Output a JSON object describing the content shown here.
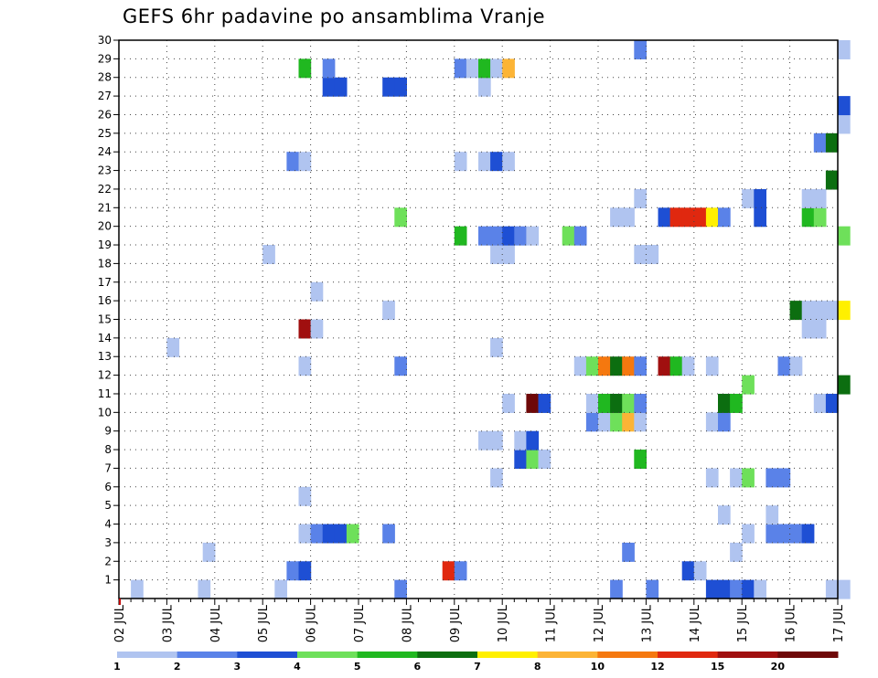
{
  "chart_data": {
    "type": "heatmap",
    "title": "GEFS 6hr padavine po ansamblima Vranje",
    "xlabel": "",
    "ylabel": "",
    "x_tick_labels": [
      "02 JUL",
      "03 JUL",
      "04 JUL",
      "05 JUL",
      "06 JUL",
      "07 JUL",
      "08 JUL",
      "09 JUL",
      "10 JUL",
      "11 JUL",
      "12 JUL",
      "13 JUL",
      "14 JUL",
      "15 JUL",
      "16 JUL",
      "17 JUL"
    ],
    "y_tick_labels": [
      "1",
      "2",
      "3",
      "4",
      "5",
      "6",
      "7",
      "8",
      "9",
      "10",
      "11",
      "12",
      "13",
      "14",
      "15",
      "16",
      "17",
      "18",
      "19",
      "20",
      "21",
      "22",
      "23",
      "24",
      "25",
      "26",
      "27",
      "28",
      "29",
      "30"
    ],
    "xlim_days": [
      0,
      15
    ],
    "ylim_members": [
      0,
      30
    ],
    "grid": true,
    "legend": {
      "position": "bottom",
      "labels": [
        "1",
        "2",
        "3",
        "4",
        "5",
        "6",
        "7",
        "8",
        "10",
        "12",
        "15",
        "20"
      ],
      "colors": [
        "#b0c4f0",
        "#5a82e8",
        "#1e4fd4",
        "#6ee05a",
        "#20b820",
        "#0c6e10",
        "#fff000",
        "#fcb436",
        "#f5780f",
        "#e0280f",
        "#a00f0f",
        "#6e0808"
      ]
    },
    "cells": [
      [
        0.25,
        0,
        0
      ],
      [
        1.65,
        0,
        0
      ],
      [
        3.25,
        0,
        0
      ],
      [
        5.75,
        0,
        1
      ],
      [
        10.25,
        0,
        1
      ],
      [
        11.0,
        0,
        1
      ],
      [
        12.25,
        0,
        2
      ],
      [
        12.5,
        0,
        2
      ],
      [
        12.75,
        0,
        1
      ],
      [
        13.0,
        0,
        2
      ],
      [
        13.25,
        0,
        0
      ],
      [
        14.75,
        0,
        0
      ],
      [
        15.0,
        0,
        0
      ],
      [
        3.5,
        1,
        1
      ],
      [
        3.75,
        1,
        2
      ],
      [
        6.75,
        1,
        9
      ],
      [
        7.0,
        1,
        1
      ],
      [
        11.75,
        1,
        2
      ],
      [
        12.0,
        1,
        0
      ],
      [
        1.75,
        2,
        0
      ],
      [
        10.5,
        2,
        1
      ],
      [
        12.75,
        2,
        0
      ],
      [
        3.75,
        3,
        0
      ],
      [
        4.0,
        3,
        1
      ],
      [
        4.25,
        3,
        2
      ],
      [
        4.5,
        3,
        2
      ],
      [
        4.75,
        3,
        3
      ],
      [
        5.5,
        3,
        1
      ],
      [
        13.0,
        3,
        0
      ],
      [
        13.5,
        3,
        1
      ],
      [
        13.75,
        3,
        1
      ],
      [
        14.0,
        3,
        1
      ],
      [
        14.25,
        3,
        2
      ],
      [
        12.5,
        4,
        0
      ],
      [
        13.5,
        4,
        0
      ],
      [
        3.75,
        5,
        0
      ],
      [
        7.75,
        6,
        0
      ],
      [
        12.25,
        6,
        0
      ],
      [
        12.75,
        6,
        0
      ],
      [
        13.0,
        6,
        3
      ],
      [
        13.5,
        6,
        1
      ],
      [
        13.75,
        6,
        1
      ],
      [
        8.25,
        7,
        2
      ],
      [
        8.5,
        7,
        3
      ],
      [
        8.75,
        7,
        0
      ],
      [
        10.75,
        7,
        4
      ],
      [
        7.5,
        8,
        0
      ],
      [
        7.75,
        8,
        0
      ],
      [
        8.25,
        8,
        0
      ],
      [
        8.5,
        8,
        2
      ],
      [
        9.75,
        9,
        1
      ],
      [
        10.0,
        9,
        0
      ],
      [
        10.25,
        9,
        3
      ],
      [
        10.5,
        9,
        7
      ],
      [
        10.75,
        9,
        0
      ],
      [
        12.25,
        9,
        0
      ],
      [
        12.5,
        9,
        1
      ],
      [
        8.0,
        10,
        0
      ],
      [
        8.5,
        10,
        11
      ],
      [
        8.75,
        10,
        2
      ],
      [
        9.75,
        10,
        0
      ],
      [
        10.0,
        10,
        4
      ],
      [
        10.25,
        10,
        5
      ],
      [
        10.5,
        10,
        3
      ],
      [
        10.75,
        10,
        1
      ],
      [
        12.5,
        10,
        5
      ],
      [
        12.75,
        10,
        4
      ],
      [
        14.5,
        10,
        0
      ],
      [
        14.75,
        10,
        2
      ],
      [
        13.0,
        11,
        3
      ],
      [
        15.0,
        11,
        5
      ],
      [
        3.75,
        12,
        0
      ],
      [
        5.75,
        12,
        1
      ],
      [
        9.5,
        12,
        0
      ],
      [
        9.75,
        12,
        3
      ],
      [
        10.0,
        12,
        8
      ],
      [
        10.25,
        12,
        5
      ],
      [
        10.5,
        12,
        8
      ],
      [
        10.75,
        12,
        1
      ],
      [
        11.25,
        12,
        10
      ],
      [
        11.5,
        12,
        4
      ],
      [
        11.75,
        12,
        0
      ],
      [
        12.25,
        12,
        0
      ],
      [
        13.75,
        12,
        1
      ],
      [
        14.0,
        12,
        0
      ],
      [
        1.0,
        13,
        0
      ],
      [
        7.75,
        13,
        0
      ],
      [
        3.75,
        14,
        10
      ],
      [
        4.0,
        14,
        0
      ],
      [
        14.25,
        14,
        0
      ],
      [
        14.5,
        14,
        0
      ],
      [
        5.5,
        15,
        0
      ],
      [
        14.0,
        15,
        5
      ],
      [
        14.25,
        15,
        0
      ],
      [
        14.5,
        15,
        0
      ],
      [
        14.75,
        15,
        0
      ],
      [
        15.0,
        15,
        6
      ],
      [
        4.0,
        16,
        0
      ],
      [
        3.0,
        18,
        0
      ],
      [
        7.75,
        18,
        0
      ],
      [
        8.0,
        18,
        0
      ],
      [
        10.75,
        18,
        0
      ],
      [
        11.0,
        18,
        0
      ],
      [
        7.0,
        19,
        4
      ],
      [
        7.5,
        19,
        1
      ],
      [
        7.75,
        19,
        1
      ],
      [
        8.0,
        19,
        2
      ],
      [
        8.25,
        19,
        1
      ],
      [
        8.5,
        19,
        0
      ],
      [
        9.25,
        19,
        3
      ],
      [
        9.5,
        19,
        1
      ],
      [
        15.0,
        19,
        3
      ],
      [
        5.75,
        20,
        3
      ],
      [
        10.25,
        20,
        0
      ],
      [
        10.5,
        20,
        0
      ],
      [
        11.25,
        20,
        2
      ],
      [
        11.5,
        20,
        9
      ],
      [
        11.75,
        20,
        9
      ],
      [
        12.0,
        20,
        9
      ],
      [
        12.25,
        20,
        6
      ],
      [
        12.5,
        20,
        1
      ],
      [
        13.25,
        20,
        2
      ],
      [
        14.25,
        20,
        4
      ],
      [
        14.5,
        20,
        3
      ],
      [
        10.75,
        21,
        0
      ],
      [
        13.0,
        21,
        0
      ],
      [
        13.25,
        21,
        2
      ],
      [
        14.25,
        21,
        0
      ],
      [
        14.5,
        21,
        0
      ],
      [
        14.75,
        22,
        5
      ],
      [
        3.5,
        23,
        1
      ],
      [
        3.75,
        23,
        0
      ],
      [
        7.0,
        23,
        0
      ],
      [
        7.5,
        23,
        0
      ],
      [
        7.75,
        23,
        2
      ],
      [
        8.0,
        23,
        0
      ],
      [
        14.5,
        24,
        1
      ],
      [
        14.75,
        24,
        5
      ],
      [
        15.0,
        25,
        0
      ],
      [
        15.0,
        26,
        2
      ],
      [
        4.25,
        27,
        2
      ],
      [
        4.5,
        27,
        2
      ],
      [
        5.5,
        27,
        2
      ],
      [
        5.75,
        27,
        2
      ],
      [
        7.5,
        27,
        0
      ],
      [
        3.75,
        28,
        4
      ],
      [
        4.25,
        28,
        1
      ],
      [
        7.0,
        28,
        1
      ],
      [
        7.25,
        28,
        0
      ],
      [
        7.5,
        28,
        4
      ],
      [
        7.75,
        28,
        0
      ],
      [
        8.0,
        28,
        7
      ],
      [
        10.75,
        29,
        1
      ],
      [
        15.0,
        29,
        0
      ]
    ]
  }
}
